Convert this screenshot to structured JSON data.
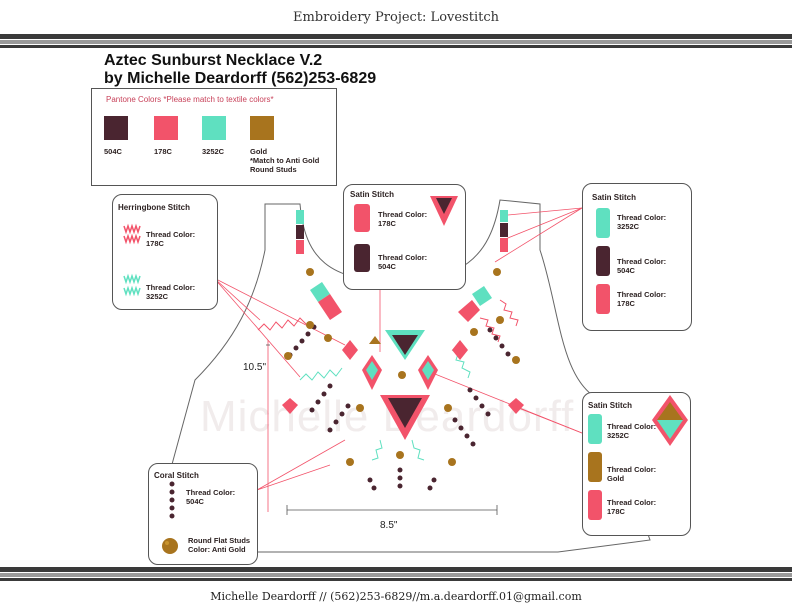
{
  "header": {
    "title": "Embroidery Project: Lovestitch"
  },
  "project": {
    "title_line1": "Aztec Sunburst Necklace V.2",
    "title_line2": "by Michelle Deardorff   (562)253-6829"
  },
  "pantone": {
    "heading": "Pantone Colors *Please match to textile colors*",
    "swatches": [
      {
        "code": "504C",
        "color": "#4a2530"
      },
      {
        "code": "178C",
        "color": "#f2536a"
      },
      {
        "code": "3252C",
        "color": "#5fe0c0"
      },
      {
        "code": "Gold",
        "color": "#a8741e"
      }
    ],
    "gold_note_1": "*Match to Anti Gold",
    "gold_note_2": "Round Studs"
  },
  "herringbone": {
    "heading": "Herringbone Stitch",
    "item1_l1": "Thread Color:",
    "item1_l2": "178C",
    "item2_l1": "Thread Color:",
    "item2_l2": "3252C"
  },
  "satin_center": {
    "heading": "Satin Stitch",
    "item1_l1": "Thread Color:",
    "item1_l2": "178C",
    "item2_l1": "Thread Color:",
    "item2_l2": "504C"
  },
  "satin_right": {
    "heading": "Satin Stitch",
    "item1_l1": "Thread Color:",
    "item1_l2": "3252C",
    "item2_l1": "Thread Color:",
    "item2_l2": "504C",
    "item3_l1": "Thread Color:",
    "item3_l2": "178C"
  },
  "satin_lower": {
    "heading": "Satin Stitch",
    "item1_l1": "Thread Color:",
    "item1_l2": "3252C",
    "item2_l1": "Thread Color:",
    "item2_l2": "Gold",
    "item3_l1": "Thread Color:",
    "item3_l2": "178C"
  },
  "coral": {
    "heading": "Coral Stitch",
    "item1_l1": "Thread Color:",
    "item1_l2": "504C",
    "item2_l1": "Round Flat Studs",
    "item2_l2": "Color: Anti Gold"
  },
  "dimensions": {
    "height": "10.5\"",
    "width": "8.5\""
  },
  "watermark": "Michelle Deardorff",
  "footer": {
    "text": "Michelle Deardorff // (562)253-6829//m.a.deardorff.01@gmail.com"
  },
  "colors": {
    "c504": "#4a2530",
    "c178": "#f2536a",
    "c3252": "#5fe0c0",
    "gold": "#a8741e"
  }
}
